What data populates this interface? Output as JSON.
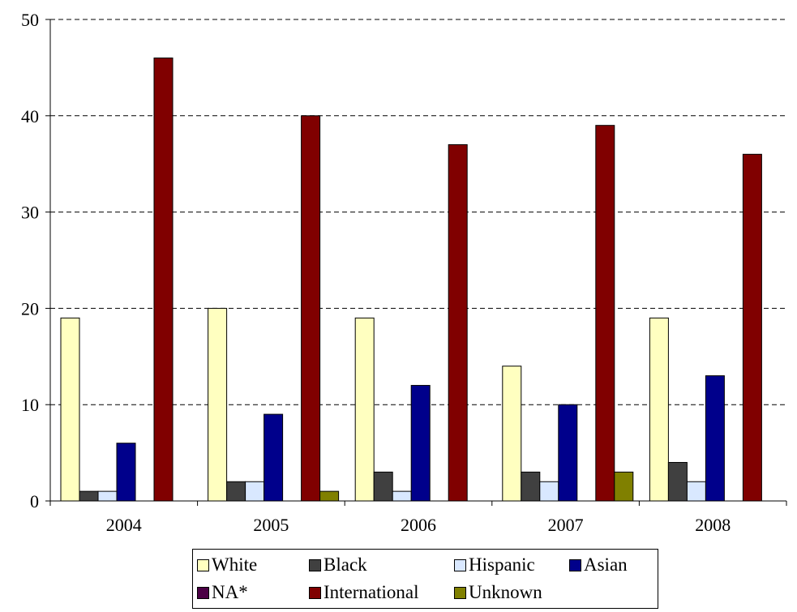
{
  "chart_data": {
    "type": "bar",
    "categories": [
      "2004",
      "2005",
      "2006",
      "2007",
      "2008"
    ],
    "series": [
      {
        "name": "White",
        "color": "#ffffc0",
        "values": [
          19,
          20,
          19,
          14,
          19
        ]
      },
      {
        "name": "Black",
        "color": "#404040",
        "values": [
          1,
          2,
          3,
          3,
          4
        ]
      },
      {
        "name": "Hispanic",
        "color": "#d9e8ff",
        "values": [
          1,
          2,
          1,
          2,
          2
        ]
      },
      {
        "name": "Asian",
        "color": "#00008b",
        "values": [
          6,
          9,
          12,
          10,
          13
        ]
      },
      {
        "name": "NA*",
        "color": "#4b0045",
        "values": [
          0,
          0,
          0,
          0,
          0
        ]
      },
      {
        "name": "International",
        "color": "#800000",
        "values": [
          46,
          40,
          37,
          39,
          36
        ]
      },
      {
        "name": "Unknown",
        "color": "#808000",
        "values": [
          0,
          1,
          0,
          3,
          0
        ]
      }
    ],
    "ylim": [
      0,
      50
    ],
    "yticks": [
      "0",
      "10",
      "20",
      "30",
      "40",
      "50"
    ],
    "grid": true,
    "legend_position": "bottom",
    "title": "",
    "xlabel": "",
    "ylabel": ""
  }
}
